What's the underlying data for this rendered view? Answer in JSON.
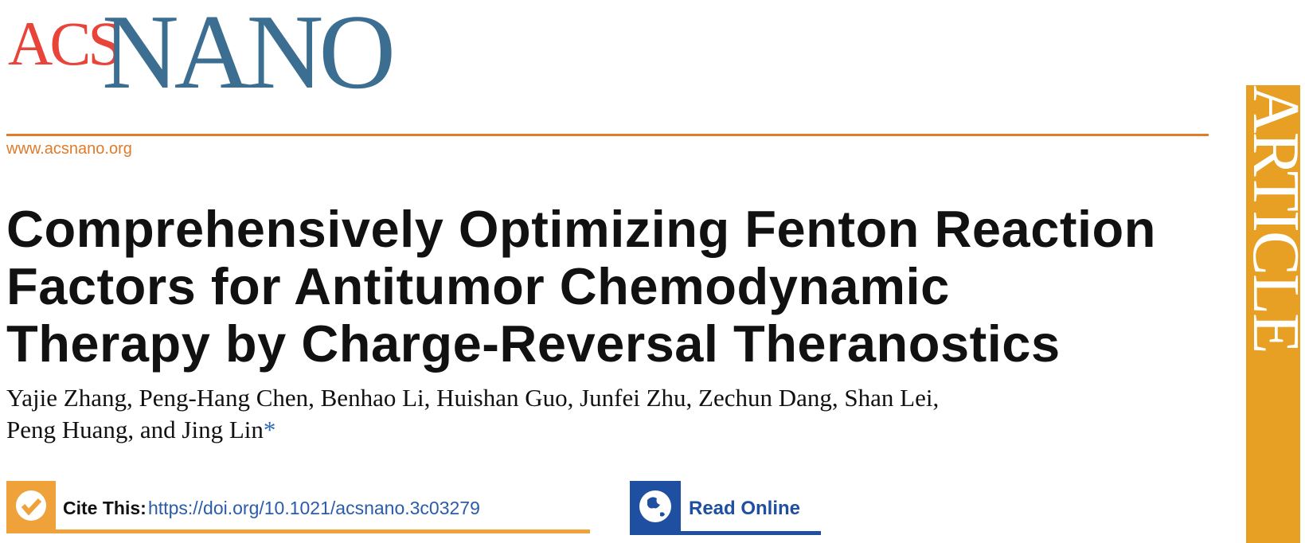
{
  "header": {
    "logo_acs": "ACS",
    "logo_nano": "NANO",
    "url": "www.acsnano.org",
    "section": "ARTICLE"
  },
  "article": {
    "title_lines": [
      "Comprehensively Optimizing Fenton Reaction",
      "Factors for Antitumor Chemodynamic",
      "Therapy by Charge-Reversal Theranostics"
    ],
    "author_lines": [
      "Yajie Zhang, Peng-Hang Chen, Benhao Li, Huishan Guo, Junfei Zhu, Zechun Dang, Shan Lei,",
      "Peng Huang, and Jing Lin"
    ],
    "corresponding_mark": "*"
  },
  "links": {
    "cite_label": "Cite This:",
    "doi": "https://doi.org/10.1021/acsnano.3c03279",
    "read_online": "Read Online"
  }
}
